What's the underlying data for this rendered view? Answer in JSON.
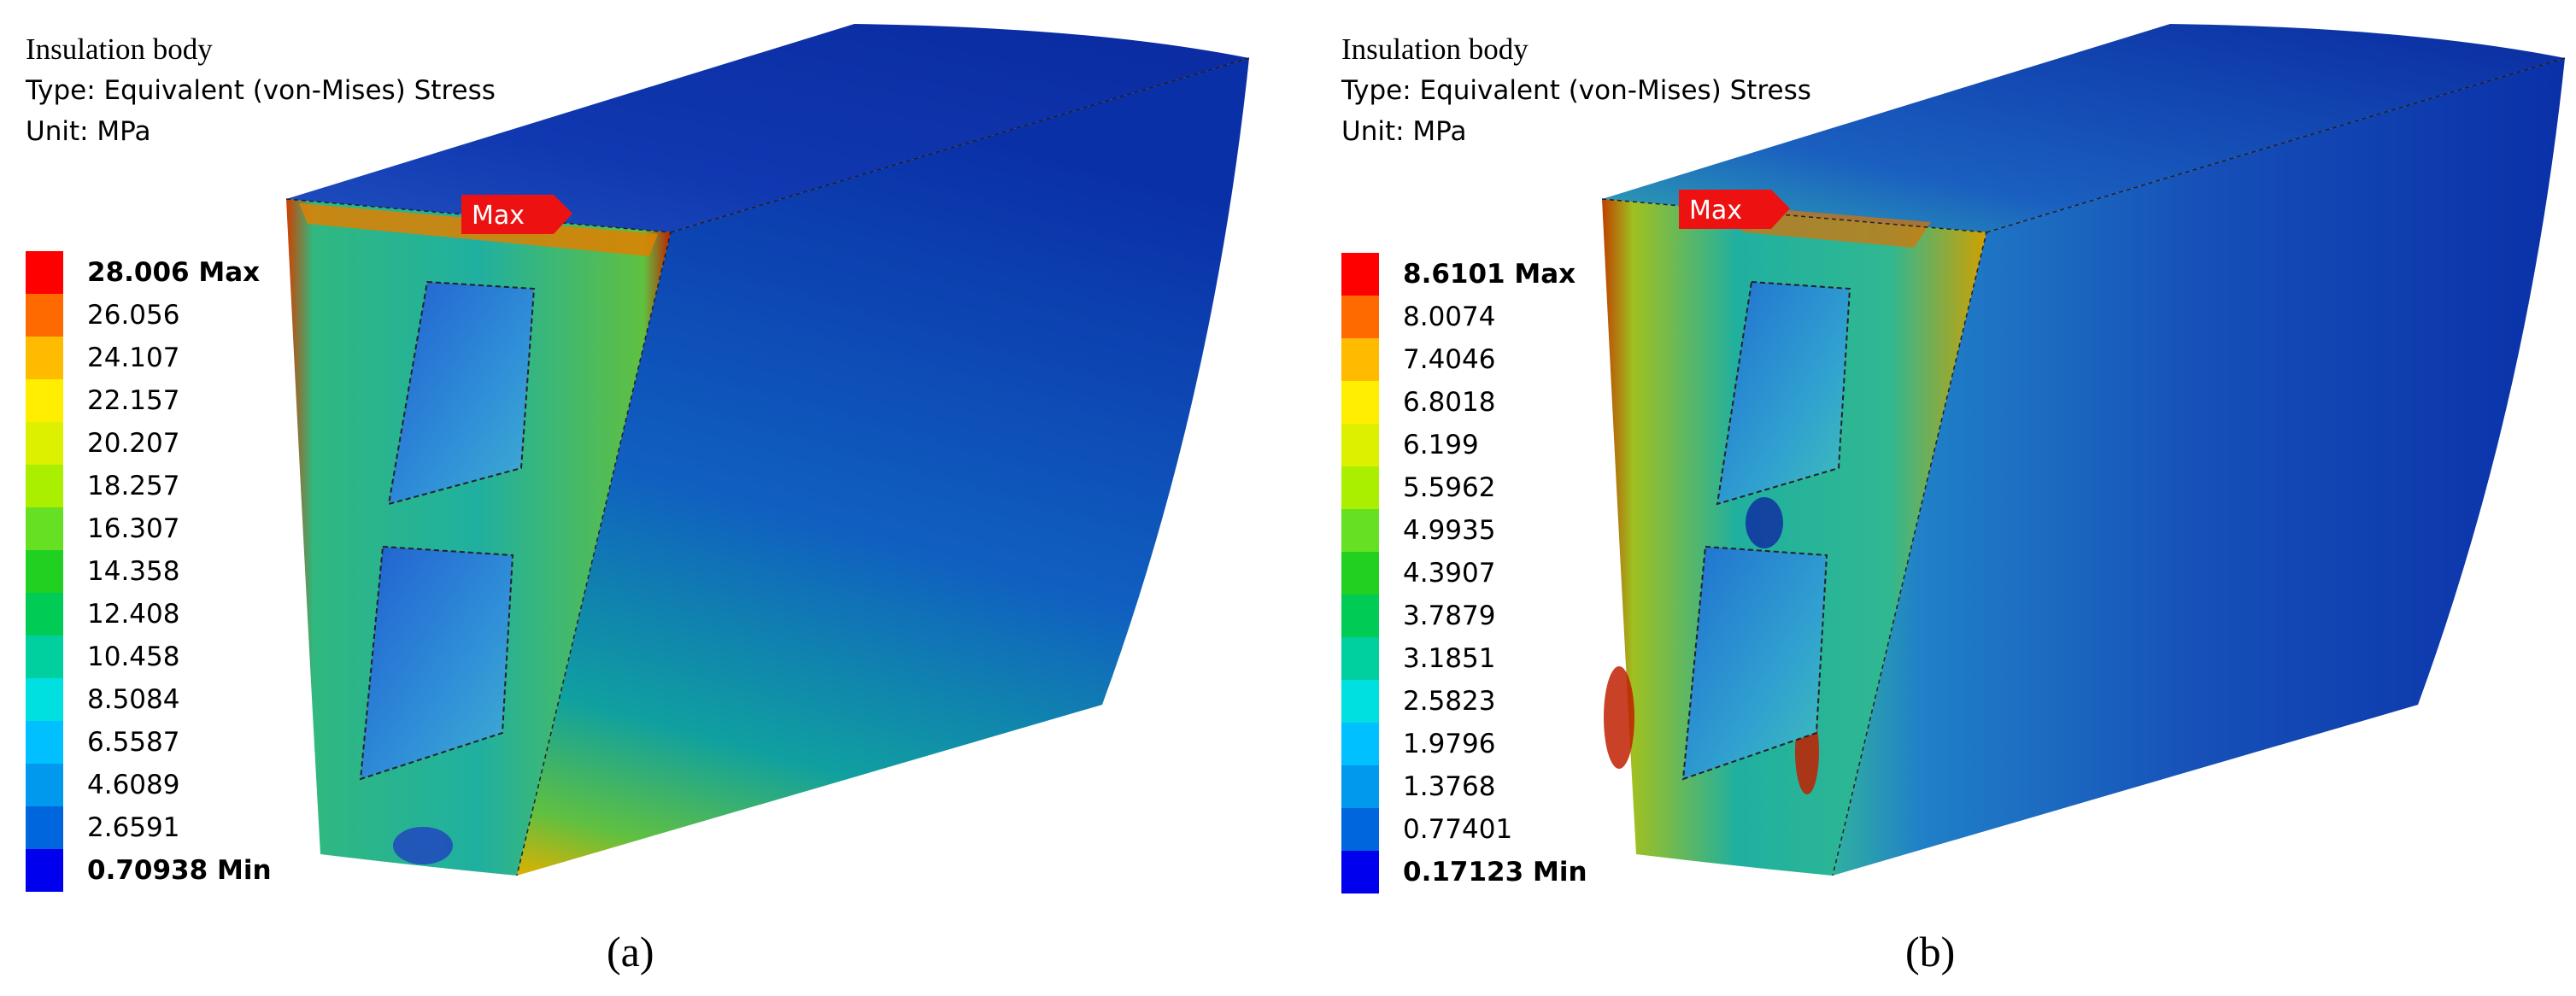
{
  "palette": [
    "#ff0000",
    "#ff6a00",
    "#ffbb00",
    "#ffee00",
    "#ddf000",
    "#aaee00",
    "#66e022",
    "#22d022",
    "#00cc55",
    "#00d0a0",
    "#00e0e0",
    "#00c0ff",
    "#0099ee",
    "#0066dd",
    "#0000ee"
  ],
  "panels": [
    {
      "caption": "(a)",
      "header": {
        "title": "Insulation body",
        "type_line": "Type: Equivalent (von-Mises) Stress",
        "unit_line": "Unit: MPa"
      },
      "max_marker": "Max",
      "legend": {
        "max_label": "28.006 Max",
        "min_label": "0.70938 Min",
        "levels": [
          "26.056",
          "24.107",
          "22.157",
          "20.207",
          "18.257",
          "16.307",
          "14.358",
          "12.408",
          "10.458",
          "8.5084",
          "6.5587",
          "4.6089",
          "2.6591"
        ]
      }
    },
    {
      "caption": "(b)",
      "header": {
        "title": "Insulation body",
        "type_line": "Type: Equivalent (von-Mises) Stress",
        "unit_line": "Unit: MPa"
      },
      "max_marker": "Max",
      "legend": {
        "max_label": "8.6101 Max",
        "min_label": "0.17123 Min",
        "levels": [
          "8.0074",
          "7.4046",
          "6.8018",
          "6.199",
          "5.5962",
          "4.9935",
          "4.3907",
          "3.7879",
          "3.1851",
          "2.5823",
          "1.9796",
          "1.3768",
          "0.77401"
        ]
      }
    }
  ]
}
